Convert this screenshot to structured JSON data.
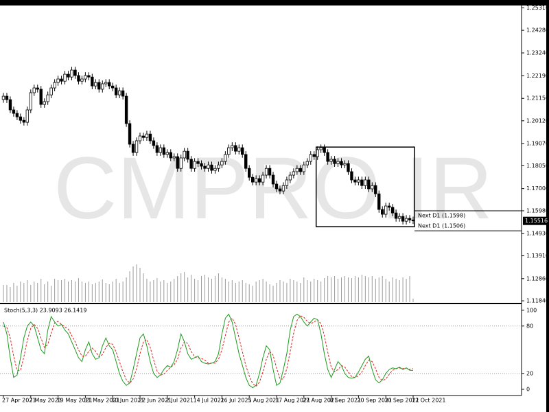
{
  "chart_data": {
    "type": "candlestick",
    "watermark": "CMPRO.IR",
    "categories": [
      "27 Apr 2021",
      null,
      null,
      null,
      null,
      null,
      null,
      null,
      "7 May 2021",
      null,
      null,
      null,
      null,
      null,
      null,
      null,
      "19 May 2021",
      null,
      null,
      null,
      null,
      null,
      null,
      null,
      "31 May 2021",
      null,
      null,
      null,
      null,
      null,
      null,
      null,
      "10 Jun 2021",
      null,
      null,
      null,
      null,
      null,
      null,
      null,
      "22 Jun 2021",
      null,
      null,
      null,
      null,
      null,
      null,
      null,
      "2 Jul 2021",
      null,
      null,
      null,
      null,
      null,
      null,
      null,
      "14 Jul 2021",
      null,
      null,
      null,
      null,
      null,
      null,
      null,
      "26 Jul 2021",
      null,
      null,
      null,
      null,
      null,
      null,
      null,
      "5 Aug 2021",
      null,
      null,
      null,
      null,
      null,
      null,
      null,
      "17 Aug 2021",
      null,
      null,
      null,
      null,
      null,
      null,
      null,
      "27 Aug 2021",
      null,
      null,
      null,
      null,
      null,
      null,
      null,
      "8 Sep 2021",
      null,
      null,
      null,
      null,
      null,
      null,
      null,
      "20 Sep 2021",
      null,
      null,
      null,
      null,
      null,
      null,
      null,
      "30 Sep 2021",
      null,
      null,
      null,
      null,
      null,
      null,
      null,
      "12 Oct 2021"
    ],
    "open": [
      1.211,
      1.2125,
      1.2109,
      1.2062,
      1.2046,
      1.203,
      1.2014,
      1.2005,
      1.2062,
      1.2141,
      1.2163,
      1.2157,
      1.2087,
      1.21,
      1.2131,
      1.2163,
      1.2188,
      1.2204,
      1.2194,
      1.2226,
      1.2213,
      1.2245,
      1.222,
      1.2194,
      1.2204,
      1.222,
      1.2213,
      1.2172,
      1.2188,
      1.2157,
      1.2182,
      1.2188,
      1.2172,
      1.2163,
      1.2131,
      1.215,
      1.2125,
      1.1999,
      1.1904,
      1.1866,
      1.192,
      1.1942,
      1.1935,
      1.1951,
      1.192,
      1.1898,
      1.1866,
      1.1888,
      1.1857,
      1.1866,
      1.1841,
      1.1847,
      1.1793,
      1.1841,
      1.1872,
      1.1835,
      1.1793,
      1.1825,
      1.1815,
      1.1803,
      1.1793,
      1.1809,
      1.1784,
      1.1793,
      1.1809,
      1.1825,
      1.1857,
      1.1888,
      1.1898,
      1.1872,
      1.1888,
      1.1857,
      1.1793,
      1.1752,
      1.173,
      1.1746,
      1.173,
      1.1762,
      1.1793,
      1.1762,
      1.1721,
      1.1699,
      1.1689,
      1.1714,
      1.174,
      1.1762,
      1.1778,
      1.1793,
      1.1778,
      1.1809,
      1.1825,
      1.1857,
      1.1847,
      1.1879,
      1.1888,
      1.1866,
      1.1825,
      1.1835,
      1.1815,
      1.1825,
      1.1809,
      1.1815,
      1.1778,
      1.174,
      1.173,
      1.174,
      1.1714,
      1.174,
      1.1699,
      1.1714,
      1.1676,
      1.1604,
      1.1582,
      1.162,
      1.1614,
      1.1588,
      1.1563,
      1.1572,
      1.155,
      1.1563,
      1.1556
    ],
    "high": [
      1.214,
      1.214,
      1.2124,
      1.2077,
      1.2061,
      1.2045,
      1.2029,
      1.2077,
      1.2156,
      1.2178,
      1.2178,
      1.2172,
      1.2115,
      1.2146,
      1.2178,
      1.2203,
      1.2219,
      1.2219,
      1.2241,
      1.2241,
      1.226,
      1.226,
      1.2235,
      1.2219,
      1.2235,
      1.2235,
      1.2228,
      1.2203,
      1.2203,
      1.2197,
      1.2203,
      1.2203,
      1.2187,
      1.2178,
      1.2165,
      1.2165,
      1.214,
      1.2014,
      1.1919,
      1.1935,
      1.1957,
      1.1957,
      1.1966,
      1.1966,
      1.1935,
      1.1913,
      1.1903,
      1.1903,
      1.1881,
      1.1881,
      1.1862,
      1.1862,
      1.1856,
      1.1887,
      1.1887,
      1.185,
      1.184,
      1.184,
      1.183,
      1.1818,
      1.1824,
      1.1824,
      1.1808,
      1.1824,
      1.184,
      1.1872,
      1.1903,
      1.1913,
      1.1913,
      1.1903,
      1.1903,
      1.1872,
      1.1808,
      1.1767,
      1.1761,
      1.1761,
      1.1777,
      1.1808,
      1.1808,
      1.1777,
      1.1736,
      1.1714,
      1.1729,
      1.1755,
      1.1777,
      1.1793,
      1.1808,
      1.1808,
      1.1824,
      1.184,
      1.1872,
      1.1872,
      1.1894,
      1.1903,
      1.1903,
      1.1881,
      1.185,
      1.185,
      1.184,
      1.184,
      1.183,
      1.183,
      1.1793,
      1.1755,
      1.1755,
      1.1755,
      1.1755,
      1.1755,
      1.1729,
      1.1729,
      1.1691,
      1.1619,
      1.1635,
      1.1635,
      1.1629,
      1.1603,
      1.1587,
      1.1587,
      1.1578,
      1.1578,
      1.1571
    ],
    "low": [
      1.2095,
      1.2094,
      1.2047,
      1.2031,
      1.2015,
      1.1999,
      1.199,
      1.199,
      1.2047,
      1.2126,
      1.2142,
      1.2072,
      1.2072,
      1.2085,
      1.2116,
      1.2148,
      1.2173,
      1.2179,
      1.2179,
      1.2198,
      1.2198,
      1.2205,
      1.2179,
      1.2179,
      1.2189,
      1.2198,
      1.2157,
      1.2157,
      1.2142,
      1.2142,
      1.2167,
      1.2157,
      1.2148,
      1.2116,
      1.2116,
      1.211,
      1.1984,
      1.1889,
      1.1851,
      1.1851,
      1.1905,
      1.192,
      1.192,
      1.1905,
      1.1883,
      1.1851,
      1.1851,
      1.1842,
      1.1842,
      1.1826,
      1.1826,
      1.1778,
      1.1778,
      1.1826,
      1.182,
      1.1778,
      1.1778,
      1.18,
      1.1788,
      1.1778,
      1.1778,
      1.1769,
      1.1769,
      1.1778,
      1.1794,
      1.181,
      1.1842,
      1.1873,
      1.1857,
      1.1857,
      1.1842,
      1.1778,
      1.1737,
      1.1715,
      1.1715,
      1.1715,
      1.1715,
      1.1747,
      1.1747,
      1.1706,
      1.1684,
      1.1674,
      1.1674,
      1.1699,
      1.1725,
      1.1747,
      1.1763,
      1.1763,
      1.1763,
      1.1794,
      1.181,
      1.1832,
      1.1832,
      1.1864,
      1.1851,
      1.181,
      1.181,
      1.18,
      1.18,
      1.1794,
      1.1794,
      1.1763,
      1.1725,
      1.1715,
      1.1715,
      1.1699,
      1.1699,
      1.1684,
      1.1684,
      1.1661,
      1.1589,
      1.1567,
      1.1567,
      1.1599,
      1.1573,
      1.1548,
      1.1548,
      1.1535,
      1.1535,
      1.1541,
      1.1537
    ],
    "close": [
      1.2125,
      1.2109,
      1.2062,
      1.2046,
      1.203,
      1.2014,
      1.2005,
      1.2062,
      1.2141,
      1.2163,
      1.2157,
      1.2087,
      1.21,
      1.2131,
      1.2163,
      1.2188,
      1.2204,
      1.2194,
      1.2226,
      1.2213,
      1.2245,
      1.222,
      1.2194,
      1.2204,
      1.222,
      1.2213,
      1.2172,
      1.2188,
      1.2157,
      1.2182,
      1.2188,
      1.2172,
      1.2163,
      1.2131,
      1.215,
      1.2125,
      1.1999,
      1.1904,
      1.1866,
      1.192,
      1.1942,
      1.1935,
      1.1951,
      1.192,
      1.1898,
      1.1866,
      1.1888,
      1.1857,
      1.1866,
      1.1841,
      1.1847,
      1.1793,
      1.1841,
      1.1872,
      1.1835,
      1.1793,
      1.1825,
      1.1815,
      1.1803,
      1.1793,
      1.1809,
      1.1784,
      1.1793,
      1.1809,
      1.1825,
      1.1857,
      1.1888,
      1.1898,
      1.1872,
      1.1888,
      1.1857,
      1.1793,
      1.1752,
      1.173,
      1.1746,
      1.173,
      1.1762,
      1.1793,
      1.1762,
      1.1721,
      1.1699,
      1.1689,
      1.1714,
      1.174,
      1.1762,
      1.1778,
      1.1793,
      1.1778,
      1.1809,
      1.1825,
      1.1857,
      1.1847,
      1.1879,
      1.1888,
      1.1866,
      1.1825,
      1.1835,
      1.1815,
      1.1825,
      1.1809,
      1.1815,
      1.1778,
      1.174,
      1.173,
      1.174,
      1.1714,
      1.174,
      1.1699,
      1.1714,
      1.1676,
      1.1604,
      1.1582,
      1.162,
      1.1614,
      1.1588,
      1.1563,
      1.1572,
      1.155,
      1.1563,
      1.1556,
      1.15516
    ],
    "volume": [
      25,
      25,
      22,
      28,
      24,
      30,
      28,
      32,
      25,
      30,
      28,
      34,
      26,
      30,
      24,
      34,
      32,
      32,
      34,
      30,
      32,
      30,
      35,
      30,
      28,
      30,
      26,
      28,
      30,
      33,
      28,
      26,
      30,
      34,
      28,
      30,
      36,
      45,
      52,
      55,
      50,
      42,
      34,
      30,
      32,
      35,
      30,
      32,
      28,
      30,
      34,
      38,
      42,
      44,
      36,
      40,
      34,
      32,
      38,
      40,
      36,
      34,
      38,
      42,
      36,
      34,
      30,
      32,
      28,
      30,
      32,
      28,
      26,
      24,
      30,
      32,
      34,
      30,
      26,
      24,
      28,
      32,
      30,
      28,
      34,
      32,
      30,
      28,
      36,
      32,
      30,
      34,
      32,
      30,
      35,
      38,
      36,
      38,
      34,
      36,
      38,
      36,
      35,
      38,
      36,
      40,
      38,
      36,
      38,
      34,
      36,
      38,
      34,
      30,
      36,
      34,
      32,
      36,
      34,
      38,
      5
    ],
    "volume_color": "#9a9a9a",
    "up_color": "#ffffff",
    "down_color": "#000000",
    "ylim": [
      1.1178,
      1.2542
    ],
    "yticks": [
      {
        "value": 1.2531,
        "label": "1.25310"
      },
      {
        "value": 1.2428,
        "label": "1.24280"
      },
      {
        "value": 1.2324,
        "label": "1.23240"
      },
      {
        "value": 1.2219,
        "label": "1.22190"
      },
      {
        "value": 1.2115,
        "label": "1.21150"
      },
      {
        "value": 1.2012,
        "label": "1.20120"
      },
      {
        "value": 1.1907,
        "label": "1.19070"
      },
      {
        "value": 1.1805,
        "label": "1.18050"
      },
      {
        "value": 1.17,
        "label": "1.17000"
      },
      {
        "value": 1.1598,
        "label": "1.15980"
      },
      {
        "value": 1.1493,
        "label": "1.14930"
      },
      {
        "value": 1.1391,
        "label": "1.13910"
      },
      {
        "value": 1.1286,
        "label": "1.12860"
      },
      {
        "value": 1.1184,
        "label": "1.11840"
      }
    ],
    "current_price": 1.15516,
    "box": {
      "high": 1.1891,
      "low": 1.1525
    },
    "levels": [
      {
        "value": 1.1598,
        "label": "Next D1 (1.1598)"
      },
      {
        "value": 1.1506,
        "label": "Next D1 (1.1506)"
      }
    ],
    "indicator": {
      "label": "Stoch(5,3,3) 23.9093 26.1419",
      "k_color": "#1a9a1a",
      "d_color": "#e02020",
      "ylim": [
        -7,
        105
      ],
      "yticks": [
        100,
        80,
        20,
        0
      ],
      "levels": [
        80,
        20
      ],
      "k": [
        85,
        70,
        40,
        15,
        18,
        40,
        65,
        80,
        85,
        80,
        65,
        50,
        45,
        75,
        92,
        85,
        80,
        82,
        75,
        70,
        60,
        50,
        40,
        35,
        50,
        60,
        45,
        38,
        40,
        55,
        65,
        55,
        50,
        35,
        20,
        10,
        5,
        8,
        25,
        45,
        65,
        70,
        55,
        35,
        20,
        15,
        18,
        25,
        30,
        28,
        35,
        50,
        70,
        60,
        45,
        38,
        40,
        42,
        35,
        33,
        32,
        33,
        35,
        45,
        70,
        90,
        95,
        85,
        65,
        45,
        30,
        15,
        5,
        2,
        5,
        20,
        40,
        55,
        50,
        25,
        5,
        8,
        25,
        45,
        75,
        92,
        95,
        92,
        85,
        80,
        85,
        90,
        88,
        70,
        45,
        25,
        15,
        25,
        35,
        30,
        20,
        15,
        14,
        15,
        22,
        30,
        38,
        42,
        25,
        12,
        8,
        12,
        20,
        25,
        27,
        26,
        28,
        25,
        27,
        24,
        23.9093
      ],
      "d": [
        80,
        78,
        65,
        42,
        24,
        24,
        41,
        62,
        77,
        82,
        77,
        65,
        53,
        57,
        71,
        84,
        86,
        82,
        79,
        76,
        68,
        60,
        50,
        42,
        42,
        48,
        52,
        48,
        41,
        44,
        53,
        58,
        57,
        47,
        35,
        22,
        12,
        8,
        13,
        26,
        45,
        60,
        63,
        53,
        37,
        23,
        18,
        19,
        24,
        28,
        31,
        38,
        52,
        60,
        58,
        48,
        41,
        40,
        39,
        37,
        33,
        33,
        33,
        38,
        50,
        68,
        85,
        90,
        82,
        65,
        47,
        30,
        17,
        7,
        4,
        9,
        22,
        38,
        48,
        43,
        27,
        13,
        13,
        26,
        48,
        71,
        87,
        93,
        91,
        86,
        83,
        85,
        88,
        83,
        68,
        47,
        28,
        22,
        25,
        30,
        28,
        22,
        16,
        15,
        17,
        22,
        30,
        37,
        35,
        26,
        15,
        11,
        13,
        19,
        24,
        26,
        27,
        26,
        27,
        25,
        26.1419
      ]
    }
  }
}
